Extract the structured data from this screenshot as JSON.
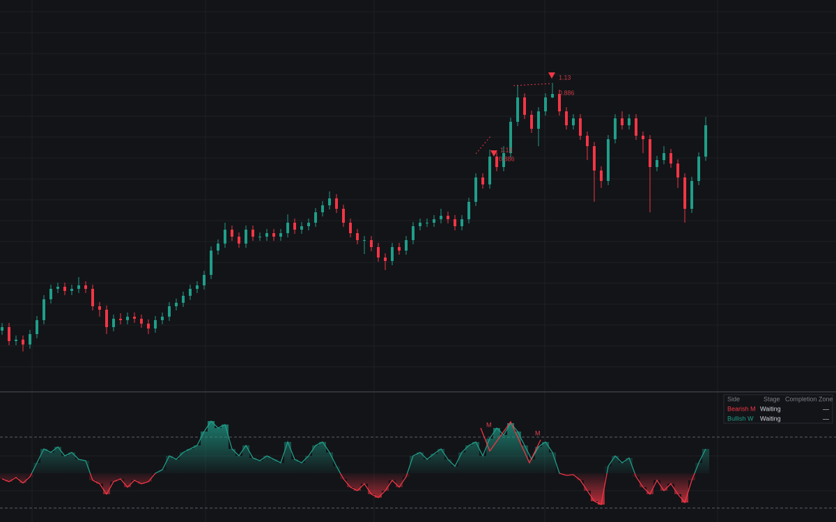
{
  "chart_data": [
    {
      "type": "candlestick",
      "ylim": [
        0,
        560
      ],
      "color_up": "#1f9e89",
      "color_down": "#f23645",
      "open": [
        85,
        90,
        70,
        72,
        65,
        80,
        100,
        130,
        145,
        148,
        142,
        145,
        150,
        145,
        120,
        115,
        90,
        102,
        100,
        105,
        102,
        95,
        88,
        100,
        105,
        120,
        125,
        135,
        145,
        150,
        165,
        200,
        210,
        230,
        220,
        210,
        230,
        220,
        220,
        225,
        220,
        225,
        240,
        230,
        235,
        240,
        255,
        265,
        275,
        260,
        240,
        225,
        215,
        215,
        205,
        190,
        185,
        205,
        200,
        215,
        235,
        240,
        240,
        245,
        250,
        245,
        235,
        245,
        270,
        305,
        295,
        335,
        320,
        340,
        385,
        420,
        395,
        375,
        400,
        420,
        425,
        400,
        380,
        390,
        365,
        350,
        315,
        300,
        360,
        390,
        380,
        390,
        365,
        360,
        320,
        330,
        340,
        325,
        305,
        260,
        300,
        335
      ],
      "high": [
        96,
        96,
        78,
        78,
        86,
        106,
        136,
        151,
        154,
        154,
        151,
        162,
        156,
        151,
        126,
        121,
        108,
        110,
        111,
        111,
        108,
        101,
        106,
        111,
        126,
        131,
        141,
        151,
        156,
        171,
        206,
        216,
        240,
        236,
        226,
        236,
        236,
        226,
        231,
        231,
        231,
        252,
        246,
        241,
        246,
        261,
        271,
        285,
        281,
        266,
        246,
        231,
        221,
        221,
        211,
        196,
        211,
        211,
        221,
        241,
        246,
        246,
        251,
        260,
        256,
        251,
        251,
        276,
        311,
        311,
        345,
        341,
        350,
        391,
        438,
        426,
        401,
        406,
        426,
        441,
        431,
        406,
        396,
        396,
        371,
        356,
        321,
        366,
        396,
        400,
        396,
        396,
        371,
        366,
        336,
        350,
        346,
        331,
        311,
        306,
        341,
        392
      ],
      "low": [
        79,
        64,
        64,
        55,
        59,
        74,
        94,
        124,
        139,
        136,
        136,
        139,
        139,
        114,
        105,
        80,
        84,
        94,
        94,
        96,
        89,
        80,
        82,
        94,
        99,
        114,
        119,
        129,
        139,
        144,
        159,
        194,
        204,
        214,
        204,
        204,
        214,
        214,
        214,
        214,
        214,
        219,
        224,
        224,
        229,
        234,
        249,
        259,
        254,
        234,
        219,
        209,
        195,
        199,
        184,
        172,
        179,
        194,
        194,
        209,
        229,
        234,
        234,
        239,
        239,
        229,
        229,
        239,
        264,
        289,
        289,
        314,
        314,
        334,
        379,
        389,
        369,
        350,
        394,
        419,
        394,
        374,
        374,
        359,
        330,
        270,
        290,
        294,
        354,
        374,
        374,
        359,
        340,
        255,
        314,
        324,
        319,
        290,
        240,
        254,
        294,
        329
      ],
      "close": [
        90,
        70,
        72,
        65,
        80,
        100,
        130,
        145,
        148,
        142,
        145,
        150,
        145,
        120,
        115,
        90,
        102,
        100,
        105,
        102,
        95,
        88,
        100,
        105,
        120,
        125,
        135,
        145,
        150,
        165,
        200,
        210,
        230,
        220,
        210,
        230,
        220,
        220,
        225,
        220,
        225,
        240,
        230,
        235,
        240,
        255,
        265,
        275,
        260,
        240,
        225,
        215,
        215,
        205,
        190,
        185,
        205,
        200,
        215,
        235,
        240,
        240,
        245,
        250,
        245,
        235,
        245,
        270,
        305,
        295,
        335,
        320,
        340,
        385,
        420,
        395,
        375,
        400,
        420,
        425,
        400,
        380,
        390,
        365,
        350,
        315,
        300,
        360,
        390,
        380,
        390,
        365,
        360,
        320,
        330,
        340,
        325,
        305,
        260,
        300,
        335,
        380
      ]
    },
    {
      "type": "area",
      "ylim": [
        -70,
        115
      ],
      "levels": [
        52,
        -50
      ],
      "color_up": "#1f9e89",
      "color_down": "#f23645",
      "values": [
        -8,
        -12,
        -6,
        -14,
        -5,
        15,
        35,
        30,
        38,
        25,
        30,
        20,
        18,
        -10,
        -15,
        -30,
        -12,
        -8,
        -20,
        -10,
        -15,
        -12,
        0,
        5,
        25,
        20,
        30,
        35,
        40,
        60,
        75,
        65,
        70,
        35,
        25,
        40,
        22,
        18,
        25,
        20,
        15,
        45,
        20,
        15,
        25,
        40,
        45,
        30,
        10,
        -8,
        -20,
        -25,
        -15,
        -30,
        -35,
        -25,
        -10,
        -20,
        -5,
        25,
        30,
        20,
        28,
        35,
        20,
        10,
        30,
        40,
        45,
        25,
        50,
        65,
        55,
        72,
        60,
        40,
        20,
        38,
        45,
        30,
        0,
        -3,
        -2,
        -10,
        -25,
        -40,
        -45,
        10,
        25,
        15,
        22,
        -5,
        -20,
        -30,
        -10,
        -25,
        -15,
        -30,
        -42,
        -10,
        15,
        35
      ]
    }
  ],
  "annotations": [
    "1.13",
    "0.886",
    "1.13",
    "0.886",
    "M",
    "M"
  ],
  "table": {
    "header": [
      "Side",
      "Stage",
      "Completion Zone"
    ],
    "rows": [
      [
        "Bearish M",
        "Waiting",
        "—"
      ],
      [
        "Bullish W",
        "Waiting",
        "—"
      ]
    ]
  }
}
